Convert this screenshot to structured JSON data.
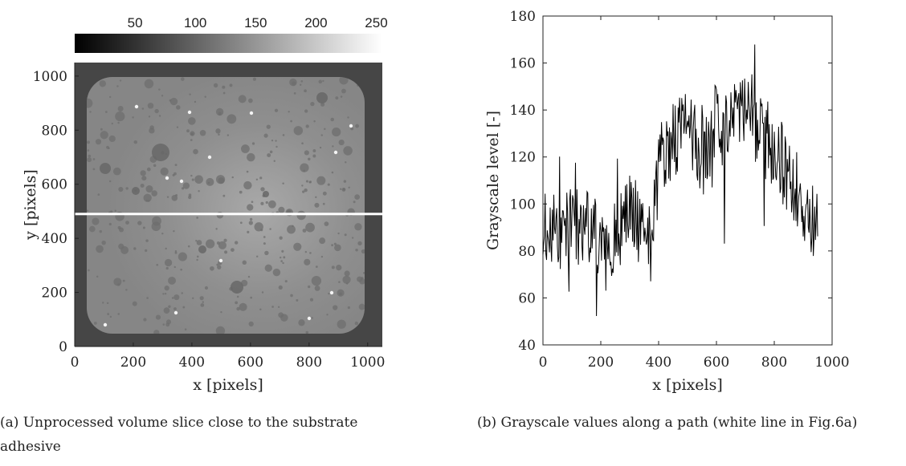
{
  "figure": {
    "caption_a": "(a) Unprocessed volume slice close to the substrate adhesive",
    "caption_b": "(b) Grayscale values along a path (white line in Fig.6a)"
  },
  "chart_data": [
    {
      "type": "heatmap",
      "title": "",
      "xlabel": "x [pixels]",
      "ylabel": "y [pixels]",
      "xlim": [
        0,
        1050
      ],
      "ylim": [
        0,
        1050
      ],
      "xticks": [
        0,
        200,
        400,
        600,
        800,
        1000
      ],
      "yticks": [
        0,
        200,
        400,
        600,
        800,
        1000
      ],
      "colorbar": {
        "ticks": [
          50,
          100,
          150,
          200,
          250
        ],
        "range": [
          0,
          255
        ],
        "colormap": "gray",
        "location": "top"
      },
      "path_line_y": 490,
      "colors": {
        "background": "#474747",
        "specimen": "#8c8c8c",
        "specimen_center": "#a8a8a8",
        "pore": "#6e6e6e",
        "bright_spot": "#f4f4f4",
        "path_line": "#ffffff"
      }
    },
    {
      "type": "line",
      "title": "",
      "xlabel": "x [pixels]",
      "ylabel": "Grayscale level [-]",
      "xlim": [
        0,
        1000
      ],
      "ylim": [
        40,
        180
      ],
      "xticks": [
        0,
        200,
        400,
        600,
        800,
        1000
      ],
      "yticks": [
        40,
        60,
        80,
        100,
        120,
        140,
        160,
        180
      ],
      "grid": false,
      "series": [
        {
          "color": "#000000",
          "x": [
            0,
            25,
            50,
            75,
            100,
            125,
            150,
            175,
            200,
            225,
            250,
            275,
            300,
            325,
            350,
            375,
            400,
            425,
            450,
            475,
            500,
            525,
            550,
            575,
            600,
            625,
            650,
            675,
            700,
            725,
            750,
            775,
            800,
            825,
            850,
            875,
            900,
            925,
            950
          ],
          "values": [
            90,
            92,
            88,
            85,
            95,
            90,
            93,
            88,
            80,
            78,
            90,
            95,
            98,
            92,
            90,
            88,
            115,
            125,
            128,
            130,
            132,
            128,
            120,
            122,
            135,
            125,
            140,
            142,
            140,
            138,
            130,
            125,
            115,
            118,
            110,
            108,
            100,
            95,
            92
          ]
        }
      ]
    }
  ]
}
